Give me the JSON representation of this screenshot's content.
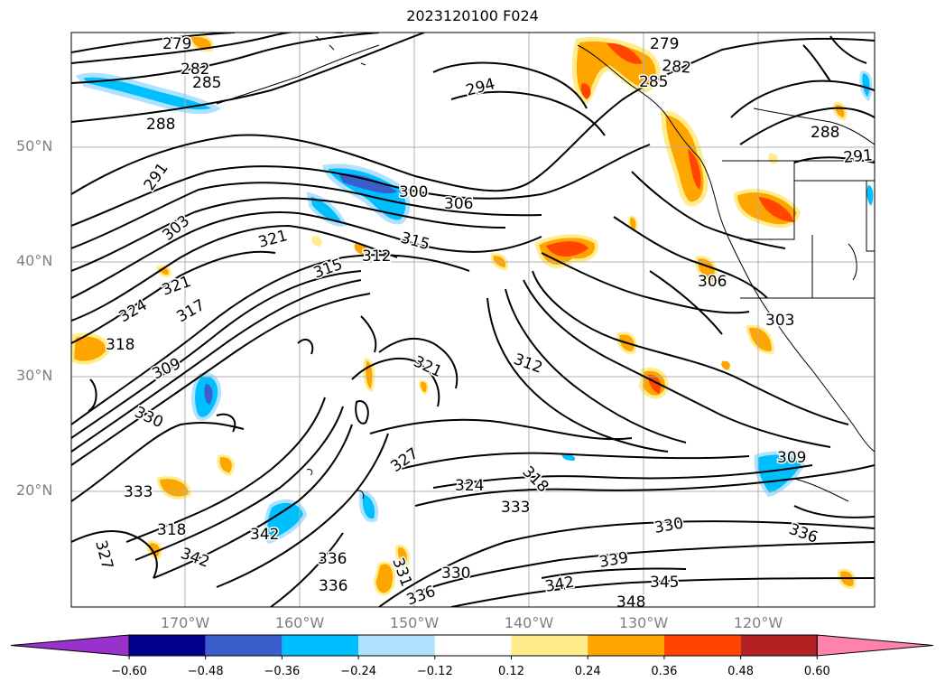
{
  "title": "2023120100 F024",
  "map": {
    "lat_labels": [
      "50°N",
      "40°N",
      "30°N",
      "20°N"
    ],
    "lon_labels": [
      "170°W",
      "160°W",
      "150°W",
      "140°W",
      "130°W",
      "120°W"
    ],
    "contour_labels": [
      "279",
      "282",
      "285",
      "288",
      "294",
      "279",
      "282",
      "285",
      "288",
      "291",
      "300",
      "306",
      "291",
      "303",
      "321",
      "315",
      "312",
      "315",
      "321",
      "317",
      "324",
      "318",
      "309",
      "330",
      "321",
      "327",
      "312",
      "306",
      "303",
      "318",
      "309",
      "324",
      "333",
      "333",
      "327",
      "318",
      "342",
      "342",
      "336",
      "336",
      "331",
      "330",
      "336",
      "339",
      "342",
      "345",
      "348",
      "330",
      "336"
    ],
    "colors": {
      "contour": "#000000",
      "grid": "#b0b0b0",
      "coast": "#000000"
    }
  },
  "colorbar": {
    "ticks": [
      "−0.60",
      "−0.48",
      "−0.36",
      "−0.24",
      "−0.12",
      "0.12",
      "0.24",
      "0.36",
      "0.48",
      "0.60"
    ],
    "colors": [
      "#9932cc",
      "#00008b",
      "#3a5fcd",
      "#00bfff",
      "#b0e2ff",
      "#ffffff",
      "#ffec8b",
      "#ffa500",
      "#ff4500",
      "#b22222",
      "#ff82ab"
    ]
  }
}
